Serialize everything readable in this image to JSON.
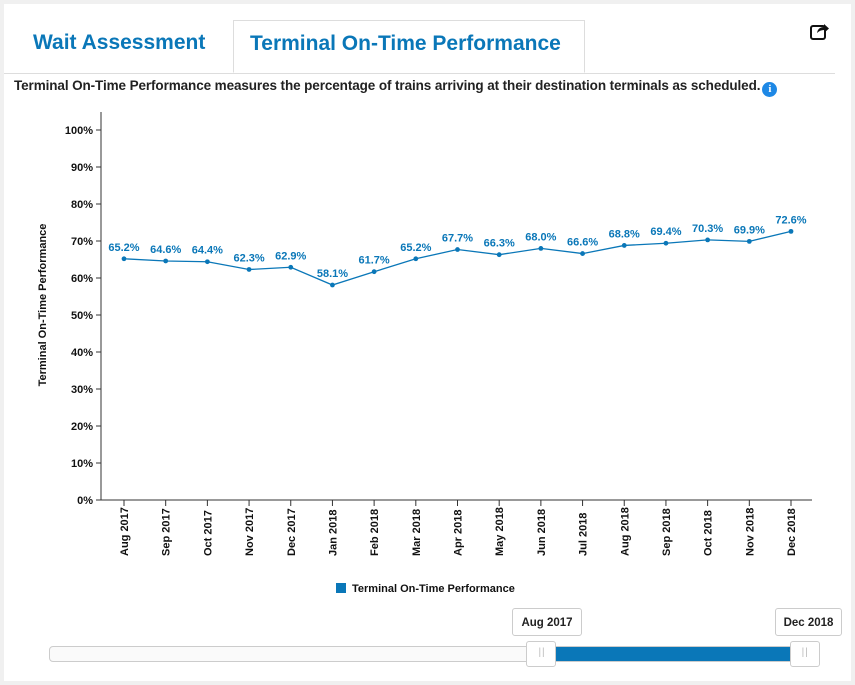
{
  "tabs": [
    {
      "label": "Wait Assessment"
    },
    {
      "label": "Terminal On-Time Performance"
    }
  ],
  "description": "Terminal On-Time Performance measures the percentage of trains arriving at their destination terminals as scheduled.",
  "icons": {
    "share": "share-icon",
    "info": "info-icon"
  },
  "colors": {
    "accent": "#0a77b8",
    "series": "#0a77b8"
  },
  "chart_data": {
    "type": "line",
    "ylabel": "Terminal On-Time Performance",
    "xlabel": "",
    "ylim": [
      0,
      100
    ],
    "yticks": [
      "0%",
      "10%",
      "20%",
      "30%",
      "40%",
      "50%",
      "60%",
      "70%",
      "80%",
      "90%",
      "100%"
    ],
    "categories": [
      "Aug 2017",
      "Sep 2017",
      "Oct 2017",
      "Nov 2017",
      "Dec 2017",
      "Jan 2018",
      "Feb 2018",
      "Mar 2018",
      "Apr 2018",
      "May 2018",
      "Jun 2018",
      "Jul 2018",
      "Aug 2018",
      "Sep 2018",
      "Oct 2018",
      "Nov 2018",
      "Dec 2018"
    ],
    "series": [
      {
        "name": "Terminal On-Time Performance",
        "values": [
          65.2,
          64.6,
          64.4,
          62.3,
          62.9,
          58.1,
          61.7,
          65.2,
          67.7,
          66.3,
          68.0,
          66.6,
          68.8,
          69.4,
          70.3,
          69.9,
          72.6
        ],
        "labels": [
          "65.2%",
          "64.6%",
          "64.4%",
          "62.3%",
          "62.9%",
          "58.1%",
          "61.7%",
          "65.2%",
          "67.7%",
          "66.3%",
          "68.0%",
          "66.6%",
          "68.8%",
          "69.4%",
          "70.3%",
          "69.9%",
          "72.6%"
        ]
      }
    ],
    "legend": "bottom-center",
    "grid": false
  },
  "range_slider": {
    "start_label": "Aug 2017",
    "end_label": "Dec 2018",
    "start_fraction": 0.64,
    "end_fraction": 0.98
  }
}
